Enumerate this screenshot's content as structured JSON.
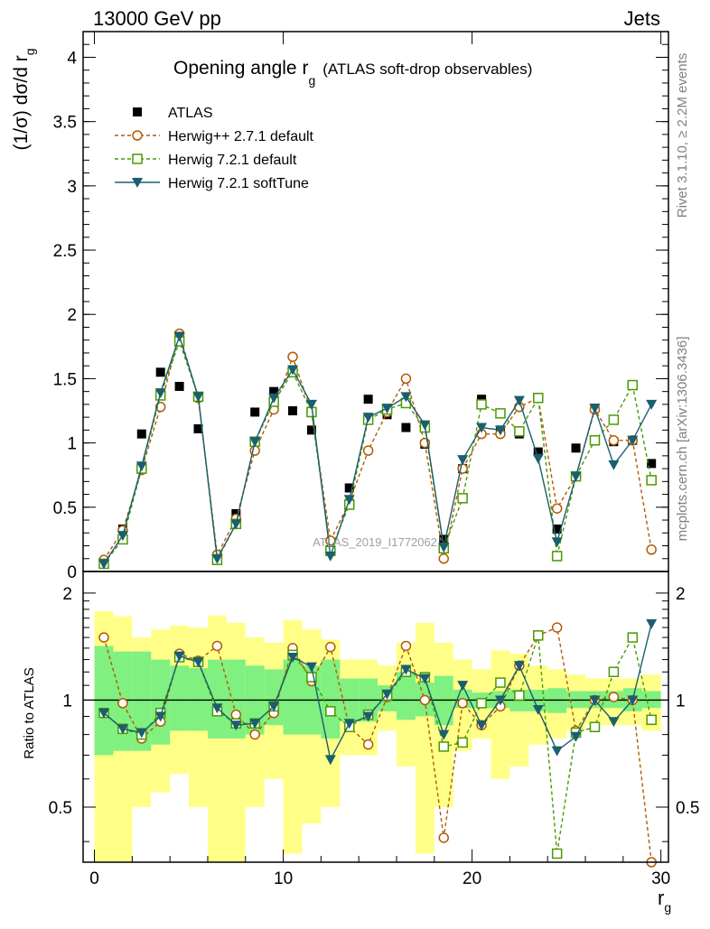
{
  "header": {
    "process": "13000 GeV pp",
    "category": "Jets"
  },
  "side": {
    "rivet": "Rivet 3.1.10, ≥ 2.2M events",
    "mcplots": "mcplots.cern.ch [arXiv:1306.3436]"
  },
  "watermark": "ATLAS_2019_I1772062",
  "chart_data": [
    {
      "type": "line",
      "title": "Opening angle r",
      "title_sub": "g",
      "title_suffix": "(ATLAS soft-drop observables)",
      "ylabel": "(1/σ) dσ/d r",
      "ylabel_sub": "g",
      "ylim": [
        0,
        4.2
      ],
      "xlim": [
        -0.6,
        30.4
      ],
      "yticks": [
        "0",
        "0.5",
        "1",
        "1.5",
        "2",
        "2.5",
        "3",
        "3.5",
        "4"
      ],
      "ytick_values": [
        0,
        0.5,
        1,
        1.5,
        2,
        2.5,
        3,
        3.5,
        4
      ],
      "x": [
        0.5,
        1.5,
        2.5,
        3.5,
        4.5,
        5.5,
        6.5,
        7.5,
        8.5,
        9.5,
        10.5,
        11.5,
        12.5,
        13.5,
        14.5,
        15.5,
        16.5,
        17.5,
        18.5,
        19.5,
        20.5,
        21.5,
        22.5,
        23.5,
        24.5,
        25.5,
        26.5,
        27.5,
        28.5,
        29.5
      ],
      "series": [
        {
          "name": "ATLAS",
          "style": "data",
          "color": "#000000",
          "values": [
            0.06,
            0.33,
            1.07,
            1.55,
            1.44,
            1.11,
            0.1,
            0.45,
            1.24,
            1.4,
            1.25,
            1.1,
            0.17,
            0.65,
            1.34,
            1.22,
            1.12,
            0.99,
            0.25,
            0.8,
            1.34,
            1.1,
            1.07,
            0.93,
            0.33,
            0.96,
            1.27,
            1.01,
            1.02,
            0.84
          ]
        },
        {
          "name": "Herwig++ 2.7.1 default",
          "style": "circle",
          "color": "#b45a00",
          "dashed": true,
          "values": [
            0.09,
            0.32,
            0.79,
            1.28,
            1.85,
            1.35,
            0.13,
            0.41,
            0.94,
            1.26,
            1.67,
            1.24,
            0.24,
            0.54,
            0.94,
            1.24,
            1.5,
            1.0,
            0.1,
            0.8,
            1.07,
            1.07,
            1.28,
            1.35,
            0.49,
            0.74,
            1.26,
            1.02,
            1.02,
            0.17
          ]
        },
        {
          "name": "Herwig 7.2.1 default",
          "style": "square",
          "color": "#4a9a00",
          "dashed": true,
          "values": [
            0.06,
            0.25,
            0.8,
            1.37,
            1.79,
            1.36,
            0.09,
            0.37,
            1.01,
            1.32,
            1.55,
            1.24,
            0.16,
            0.52,
            1.18,
            1.26,
            1.31,
            1.12,
            0.18,
            0.57,
            1.3,
            1.23,
            1.09,
            1.35,
            0.12,
            0.74,
            1.02,
            1.18,
            1.45,
            0.71
          ]
        },
        {
          "name": "Herwig 7.2.1 softTune",
          "style": "triangle",
          "color": "#1b5e6e",
          "dashed": false,
          "values": [
            0.06,
            0.28,
            0.82,
            1.39,
            1.83,
            1.36,
            0.1,
            0.37,
            1.01,
            1.35,
            1.57,
            1.3,
            0.12,
            0.56,
            1.2,
            1.27,
            1.36,
            1.14,
            0.19,
            0.87,
            1.12,
            1.1,
            1.33,
            0.88,
            0.23,
            0.74,
            1.27,
            0.83,
            1.02,
            1.3
          ]
        }
      ]
    },
    {
      "type": "line",
      "ylabel": "Ratio to ATLAS",
      "xlabel": "r",
      "xlabel_sub": "g",
      "ylim": [
        0.35,
        2.3
      ],
      "xlim": [
        -0.6,
        30.4
      ],
      "yticks": [
        "0.5",
        "1",
        "2"
      ],
      "ytick_values": [
        0.5,
        1,
        2
      ],
      "xticks": [
        "0",
        "10",
        "20",
        "30"
      ],
      "xtick_values": [
        0,
        10,
        20,
        30
      ],
      "band_inner": [
        [
          0.7,
          1.42
        ],
        [
          0.72,
          1.37
        ],
        [
          0.72,
          1.37
        ],
        [
          0.75,
          1.3
        ],
        [
          0.82,
          1.25
        ],
        [
          0.82,
          1.23
        ],
        [
          0.78,
          1.3
        ],
        [
          0.78,
          1.3
        ],
        [
          0.8,
          1.25
        ],
        [
          0.85,
          1.22
        ],
        [
          0.8,
          1.3
        ],
        [
          0.8,
          1.25
        ],
        [
          0.78,
          1.3
        ],
        [
          0.87,
          1.15
        ],
        [
          0.87,
          1.15
        ],
        [
          0.93,
          1.1
        ],
        [
          0.88,
          1.2
        ],
        [
          0.9,
          1.12
        ],
        [
          0.85,
          1.17
        ],
        [
          0.95,
          1.07
        ],
        [
          0.95,
          1.05
        ],
        [
          0.95,
          1.06
        ],
        [
          0.93,
          1.07
        ],
        [
          0.93,
          1.07
        ],
        [
          0.92,
          1.08
        ],
        [
          0.95,
          1.06
        ],
        [
          0.95,
          1.06
        ],
        [
          0.95,
          1.06
        ],
        [
          0.93,
          1.08
        ],
        [
          0.95,
          1.06
        ]
      ],
      "band_outer": [
        [
          0.35,
          1.78
        ],
        [
          0.35,
          1.72
        ],
        [
          0.5,
          1.5
        ],
        [
          0.55,
          1.58
        ],
        [
          0.62,
          1.62
        ],
        [
          0.5,
          1.6
        ],
        [
          0.35,
          1.73
        ],
        [
          0.35,
          1.65
        ],
        [
          0.5,
          1.5
        ],
        [
          0.6,
          1.45
        ],
        [
          0.37,
          1.68
        ],
        [
          0.45,
          1.58
        ],
        [
          0.5,
          1.48
        ],
        [
          0.7,
          1.3
        ],
        [
          0.7,
          1.3
        ],
        [
          0.82,
          1.25
        ],
        [
          0.65,
          1.45
        ],
        [
          0.37,
          1.65
        ],
        [
          0.5,
          1.45
        ],
        [
          0.72,
          1.3
        ],
        [
          0.78,
          1.22
        ],
        [
          0.6,
          1.38
        ],
        [
          0.65,
          1.35
        ],
        [
          0.75,
          1.25
        ],
        [
          0.78,
          1.22
        ],
        [
          0.82,
          1.18
        ],
        [
          0.85,
          1.15
        ],
        [
          0.85,
          1.15
        ],
        [
          0.85,
          1.15
        ],
        [
          0.82,
          1.18
        ]
      ],
      "reference": 1,
      "series": [
        {
          "name": "Herwig++ 2.7.1 default",
          "style": "circle",
          "color": "#b45a00",
          "dashed": true,
          "values": [
            1.5,
            0.98,
            0.78,
            0.87,
            1.35,
            1.29,
            1.42,
            0.91,
            0.8,
            0.92,
            1.4,
            1.13,
            1.41,
            0.84,
            0.75,
            1.02,
            1.42,
            1.0,
            0.41,
            0.98,
            0.85,
            0.96,
            1.25,
            1.52,
            1.6,
            0.82,
            1.0,
            1.02,
            1.0,
            0.2
          ]
        },
        {
          "name": "Herwig 7.2.1 default",
          "style": "square",
          "color": "#4a9a00",
          "dashed": true,
          "values": [
            0.92,
            0.83,
            0.8,
            0.92,
            1.32,
            1.28,
            0.93,
            0.86,
            0.86,
            0.96,
            1.34,
            1.16,
            0.93,
            0.84,
            0.91,
            1.03,
            1.2,
            1.16,
            0.74,
            0.76,
            0.98,
            1.12,
            1.03,
            1.52,
            0.37,
            0.81,
            0.84,
            1.2,
            1.5,
            0.88
          ]
        },
        {
          "name": "Herwig 7.2.1 softTune",
          "style": "triangle",
          "color": "#1b5e6e",
          "dashed": false,
          "values": [
            0.92,
            0.83,
            0.81,
            0.9,
            1.33,
            1.28,
            0.95,
            0.85,
            0.86,
            0.96,
            1.32,
            1.24,
            0.68,
            0.86,
            0.9,
            1.04,
            1.22,
            1.15,
            0.8,
            1.1,
            0.85,
            1.0,
            1.25,
            0.94,
            0.72,
            0.79,
            1.0,
            0.87,
            1.0,
            1.64
          ]
        }
      ]
    }
  ]
}
